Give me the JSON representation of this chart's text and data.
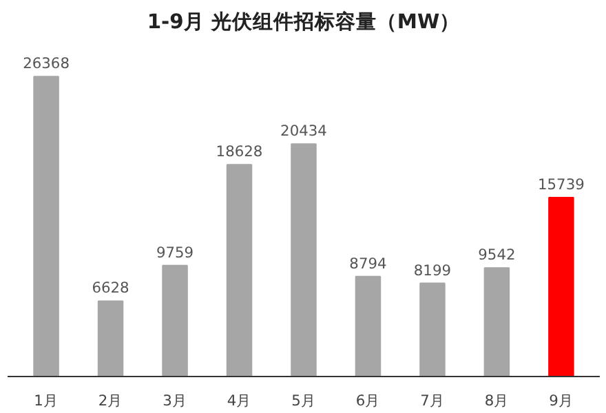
{
  "chart_data": {
    "type": "bar",
    "title": "1-9月 光伏组件招标容量（MW）",
    "categories": [
      "1月",
      "2月",
      "3月",
      "4月",
      "5月",
      "6月",
      "7月",
      "8月",
      "9月"
    ],
    "values": [
      26368,
      6628,
      9759,
      18628,
      20434,
      8794,
      8199,
      9542,
      15739
    ],
    "colors": [
      "#a6a6a6",
      "#a6a6a6",
      "#a6a6a6",
      "#a6a6a6",
      "#a6a6a6",
      "#a6a6a6",
      "#a6a6a6",
      "#a6a6a6",
      "#ff0000"
    ],
    "data_labels": true,
    "grid": false
  }
}
